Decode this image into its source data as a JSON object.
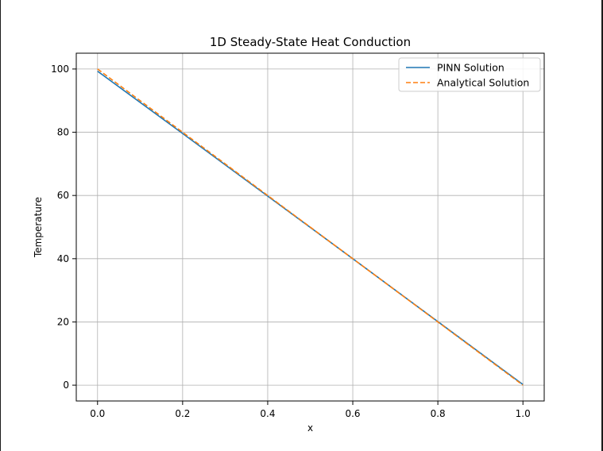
{
  "chart_data": {
    "type": "line",
    "title": "1D Steady-State Heat Conduction",
    "xlabel": "x",
    "ylabel": "Temperature",
    "xlim": [
      -0.05,
      1.05
    ],
    "ylim": [
      -5,
      105
    ],
    "xticks": [
      0.0,
      0.2,
      0.4,
      0.6,
      0.8,
      1.0
    ],
    "xtick_labels": [
      "0.0",
      "0.2",
      "0.4",
      "0.6",
      "0.8",
      "1.0"
    ],
    "yticks": [
      0,
      20,
      40,
      60,
      80,
      100
    ],
    "ytick_labels": [
      "0",
      "20",
      "40",
      "60",
      "80",
      "100"
    ],
    "grid": true,
    "legend_position": "upper right",
    "series": [
      {
        "name": "PINN Solution",
        "color": "#1f77b4",
        "style": "solid",
        "x": [
          0.0,
          0.2,
          0.4,
          0.6,
          0.8,
          1.0
        ],
        "y": [
          99.3,
          79.6,
          59.8,
          40.0,
          20.1,
          0.2
        ]
      },
      {
        "name": "Analytical Solution",
        "color": "#ff7f0e",
        "style": "dashed",
        "x": [
          0.0,
          1.0
        ],
        "y": [
          100.0,
          0.0
        ]
      }
    ]
  }
}
